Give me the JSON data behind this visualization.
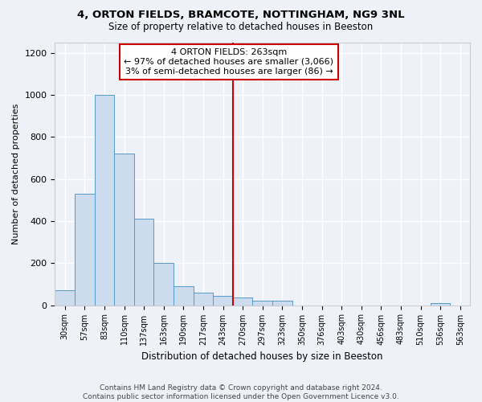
{
  "title1": "4, ORTON FIELDS, BRAMCOTE, NOTTINGHAM, NG9 3NL",
  "title2": "Size of property relative to detached houses in Beeston",
  "xlabel": "Distribution of detached houses by size in Beeston",
  "ylabel": "Number of detached properties",
  "bar_color": "#ccdcee",
  "bar_edge_color": "#5599cc",
  "categories": [
    "30sqm",
    "57sqm",
    "83sqm",
    "110sqm",
    "137sqm",
    "163sqm",
    "190sqm",
    "217sqm",
    "243sqm",
    "270sqm",
    "297sqm",
    "323sqm",
    "350sqm",
    "376sqm",
    "403sqm",
    "430sqm",
    "456sqm",
    "483sqm",
    "510sqm",
    "536sqm",
    "563sqm"
  ],
  "values": [
    70,
    530,
    1000,
    720,
    410,
    200,
    90,
    60,
    45,
    35,
    20,
    20,
    0,
    0,
    0,
    0,
    0,
    0,
    0,
    10,
    0
  ],
  "ylim": [
    0,
    1250
  ],
  "yticks": [
    0,
    200,
    400,
    600,
    800,
    1000,
    1200
  ],
  "annotation_text": "4 ORTON FIELDS: 263sqm\n← 97% of detached houses are smaller (3,066)\n3% of semi-detached houses are larger (86) →",
  "annotation_box_color": "#ffffff",
  "annotation_box_edge_color": "#cc0000",
  "line_color": "#cc0000",
  "background_color": "#eef2f8",
  "grid_color": "#ffffff",
  "footer": "Contains HM Land Registry data © Crown copyright and database right 2024.\nContains public sector information licensed under the Open Government Licence v3.0."
}
